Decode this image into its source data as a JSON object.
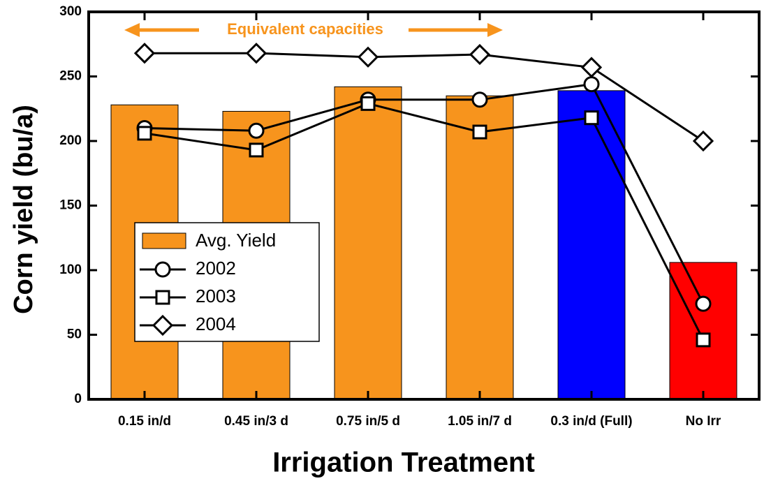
{
  "chart_data": {
    "type": "bar_line",
    "annotation": "Equivalent capacities",
    "x_label": "Irrigation Treatment",
    "y_label": "Corn yield (bu/a)",
    "categories": [
      "0.15 in/d",
      "0.45 in/3 d",
      "0.75 in/5 d",
      "1.05 in/7 d",
      "0.3 in/d (Full)",
      "No Irr"
    ],
    "ylim": [
      0,
      300
    ],
    "yticks": [
      0,
      50,
      100,
      150,
      200,
      250,
      300
    ],
    "bars": {
      "name": "Avg. Yield",
      "color": "#f7941d",
      "colors": [
        "#f7941d",
        "#f7941d",
        "#f7941d",
        "#f7941d",
        "#0000ff",
        "#ff0000"
      ],
      "values": [
        228,
        223,
        242,
        235,
        239,
        106
      ]
    },
    "series": [
      {
        "name": "2002",
        "color": "#000000",
        "marker": "circle",
        "values": [
          210,
          208,
          232,
          232,
          244,
          74
        ]
      },
      {
        "name": "2003",
        "color": "#000000",
        "marker": "square",
        "values": [
          206,
          193,
          229,
          207,
          218,
          46
        ]
      },
      {
        "name": "2004",
        "color": "#000000",
        "marker": "diamond",
        "values": [
          268,
          268,
          265,
          267,
          257,
          200
        ]
      }
    ]
  }
}
